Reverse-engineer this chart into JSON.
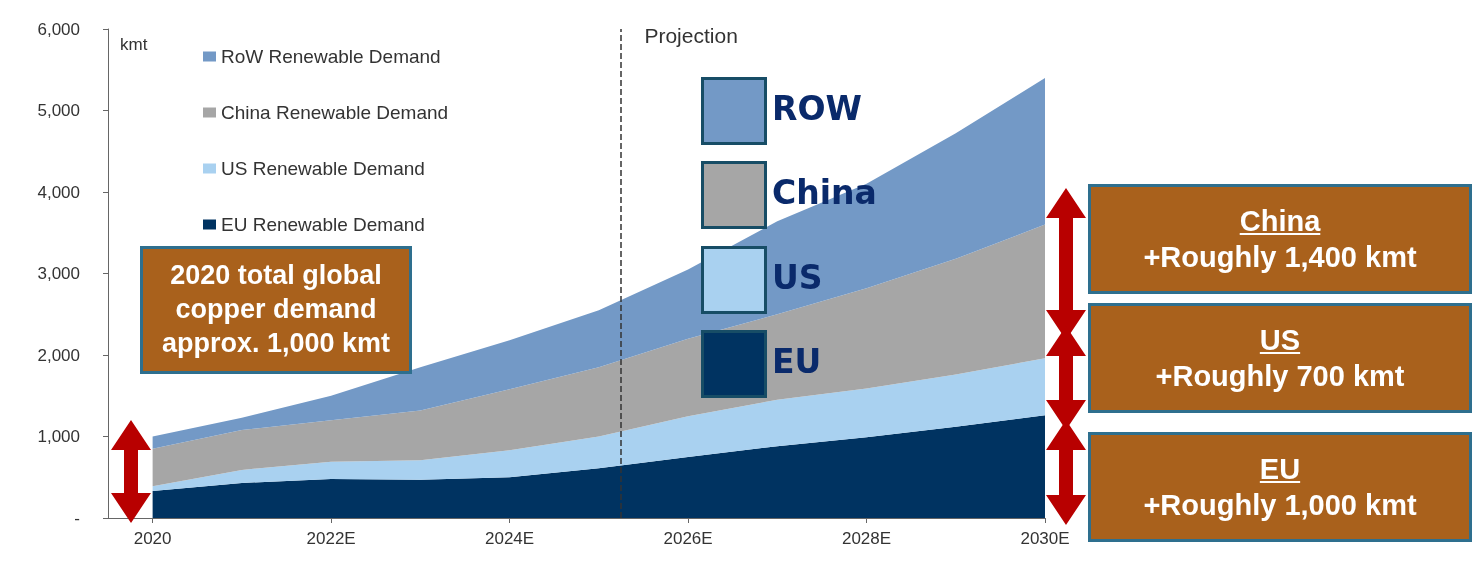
{
  "chart_data": {
    "type": "area",
    "stacked": true,
    "ylabel": "kmt",
    "x": [
      2020,
      2021,
      2022,
      2023,
      2024,
      2025,
      2026,
      2027,
      2028,
      2029,
      2030
    ],
    "xlim": [
      2019.5,
      2030
    ],
    "xticks": [
      {
        "value": 2020,
        "label": "2020"
      },
      {
        "value": 2022,
        "label": "2022E"
      },
      {
        "value": 2024,
        "label": "2024E"
      },
      {
        "value": 2026,
        "label": "2026E"
      },
      {
        "value": 2028,
        "label": "2028E"
      },
      {
        "value": 2030,
        "label": "2030E"
      }
    ],
    "ylim": [
      0,
      6000
    ],
    "yticks": [
      {
        "value": 0,
        "label": "-"
      },
      {
        "value": 1000,
        "label": "1,000"
      },
      {
        "value": 2000,
        "label": "2,000"
      },
      {
        "value": 3000,
        "label": "3,000"
      },
      {
        "value": 4000,
        "label": "4,000"
      },
      {
        "value": 5000,
        "label": "5,000"
      },
      {
        "value": 6000,
        "label": "6,000"
      }
    ],
    "series": [
      {
        "name": "EU Renewable Demand",
        "color": "#003361",
        "values": [
          330,
          430,
          480,
          470,
          500,
          610,
          750,
          880,
          990,
          1120,
          1260
        ]
      },
      {
        "name": "US Renewable Demand",
        "color": "#a9d1f0",
        "values": [
          60,
          160,
          210,
          240,
          330,
          390,
          500,
          570,
          600,
          640,
          700
        ]
      },
      {
        "name": "China Renewable Demand",
        "color": "#a6a6a6",
        "values": [
          460,
          490,
          510,
          610,
          750,
          850,
          950,
          1050,
          1230,
          1420,
          1640
        ]
      },
      {
        "name": "RoW Renewable Demand",
        "color": "#7399c6",
        "values": [
          150,
          150,
          300,
          530,
          600,
          700,
          850,
          1140,
          1280,
          1540,
          1800
        ]
      }
    ],
    "ref_lines": [
      {
        "axis": "x",
        "value": 2025.25,
        "label": "Projection",
        "color": "#333333",
        "line_style": "dashed"
      }
    ],
    "annotations": [
      "2020 total global copper demand approx. 1,000 kmt",
      "China",
      "+Roughly 1,400 kmt",
      "US",
      "+Roughly 700 kmt",
      "EU",
      "+Roughly 1,000 kmt",
      "ROW",
      "China",
      "US",
      "EU"
    ],
    "legend": "top left",
    "grid": false
  }
}
